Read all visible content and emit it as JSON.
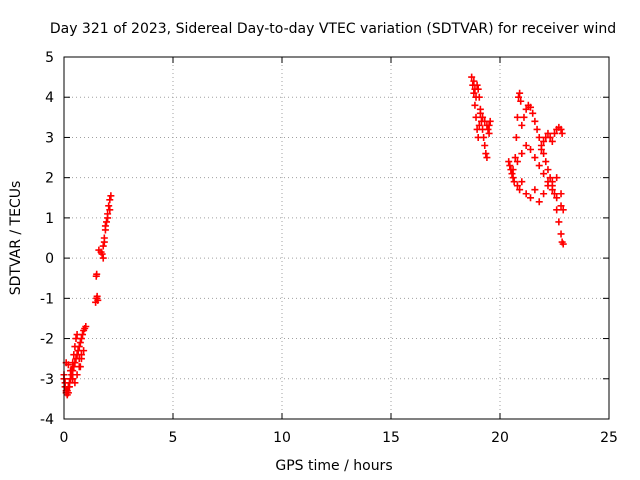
{
  "chart_data": {
    "type": "scatter",
    "title": "Day 321 of 2023, Sidereal Day-to-day VTEC variation (SDTVAR) for receiver wind",
    "xlabel": "GPS time / hours",
    "ylabel": "SDTVAR / TECUs",
    "xlim": [
      0,
      25
    ],
    "ylim": [
      -4,
      5
    ],
    "x_ticks": [
      0,
      5,
      10,
      15,
      20,
      25
    ],
    "y_ticks": [
      -4,
      -3,
      -2,
      -1,
      0,
      1,
      2,
      3,
      4,
      5
    ],
    "x_tick_labels": [
      "0",
      "5",
      "10",
      "15",
      "20",
      "25"
    ],
    "y_tick_labels": [
      "-4",
      "-3",
      "-2",
      "-1",
      "0",
      "1",
      "2",
      "3",
      "4",
      "5"
    ],
    "grid": true,
    "marker": "plus",
    "color": "#ff0000",
    "series": [
      {
        "name": "SDTVAR",
        "x": [
          0.0,
          0.05,
          0.1,
          0.15,
          0.2,
          0.25,
          0.3,
          0.35,
          0.4,
          0.45,
          0.5,
          0.55,
          0.6,
          0.65,
          0.7,
          0.75,
          0.8,
          0.85,
          0.9,
          0.95,
          1.0,
          0.1,
          0.2,
          0.3,
          0.4,
          0.5,
          0.6,
          0.7,
          0.8,
          0.9,
          0.0,
          0.05,
          0.1,
          0.15,
          0.2,
          0.25,
          0.3,
          0.35,
          0.4,
          0.45,
          0.5,
          0.55,
          0.6,
          0.65,
          0.7,
          0.75,
          0.8,
          1.45,
          1.5,
          1.52,
          1.55,
          1.5,
          1.48,
          1.6,
          1.7,
          1.75,
          1.8,
          1.85,
          1.9,
          1.95,
          2.0,
          2.05,
          2.1,
          2.15,
          1.8,
          1.85,
          1.9,
          2.0,
          2.1,
          18.7,
          18.75,
          18.8,
          18.85,
          18.9,
          18.95,
          19.0,
          19.05,
          19.1,
          19.15,
          19.2,
          19.25,
          19.3,
          19.35,
          19.4,
          19.45,
          19.5,
          19.55,
          18.8,
          18.85,
          18.9,
          18.95,
          19.0,
          19.05,
          19.1,
          19.2,
          19.3,
          19.4,
          19.5,
          20.4,
          20.45,
          20.5,
          20.55,
          20.6,
          20.65,
          20.7,
          20.75,
          20.8,
          20.85,
          20.9,
          20.95,
          21.0,
          21.1,
          21.2,
          21.3,
          21.4,
          21.5,
          21.6,
          21.7,
          21.8,
          21.9,
          22.0,
          22.1,
          22.2,
          22.3,
          22.4,
          22.5,
          22.6,
          22.7,
          22.8,
          22.85,
          22.9,
          20.8,
          20.9,
          21.0,
          21.2,
          21.4,
          21.6,
          21.8,
          22.0,
          22.2,
          22.4,
          22.6,
          22.8,
          20.6,
          20.8,
          21.0,
          21.2,
          21.4,
          21.6,
          21.8,
          22.0,
          22.2,
          22.4,
          22.6,
          22.8,
          22.9,
          21.9,
          22.0,
          22.1,
          22.2,
          22.3,
          22.4,
          22.5,
          22.6,
          22.7,
          22.8,
          22.85
        ],
        "y": [
          -3.0,
          -3.2,
          -3.35,
          -3.3,
          -3.2,
          -3.1,
          -3.0,
          -2.9,
          -2.8,
          -2.7,
          -2.6,
          -2.5,
          -2.4,
          -2.3,
          -2.2,
          -2.1,
          -2.0,
          -1.9,
          -1.8,
          -1.75,
          -1.7,
          -2.6,
          -2.65,
          -2.8,
          -3.0,
          -3.1,
          -2.9,
          -2.7,
          -2.5,
          -2.3,
          -2.9,
          -3.1,
          -3.3,
          -3.4,
          -3.35,
          -3.2,
          -3.0,
          -2.8,
          -2.6,
          -2.4,
          -2.2,
          -2.0,
          -1.9,
          -2.3,
          -2.5,
          -2.7,
          -2.4,
          -1.1,
          -1.0,
          -0.95,
          -1.05,
          -0.4,
          -0.45,
          0.2,
          0.15,
          0.1,
          0.3,
          0.5,
          0.7,
          0.9,
          1.1,
          1.3,
          1.45,
          1.55,
          0.0,
          0.4,
          0.8,
          1.0,
          1.2,
          4.5,
          4.3,
          4.1,
          3.8,
          3.5,
          3.2,
          3.0,
          3.3,
          3.6,
          3.4,
          3.2,
          3.0,
          2.8,
          2.6,
          2.5,
          3.2,
          3.3,
          3.4,
          4.4,
          4.2,
          4.0,
          4.3,
          4.2,
          4.0,
          3.7,
          3.5,
          3.4,
          3.3,
          3.1,
          2.4,
          2.3,
          2.2,
          2.1,
          2.0,
          1.9,
          2.5,
          3.0,
          3.5,
          4.0,
          4.1,
          3.9,
          3.3,
          3.5,
          3.7,
          3.8,
          3.75,
          3.6,
          3.4,
          3.2,
          3.0,
          2.8,
          2.6,
          2.4,
          2.2,
          2.0,
          1.8,
          1.6,
          1.2,
          0.9,
          0.6,
          0.4,
          0.35,
          1.8,
          1.7,
          1.9,
          1.6,
          1.5,
          1.7,
          1.4,
          1.6,
          1.8,
          1.9,
          2.0,
          1.6,
          2.2,
          2.4,
          2.6,
          2.8,
          2.7,
          2.5,
          2.3,
          2.1,
          1.9,
          1.7,
          1.5,
          1.3,
          1.2,
          2.7,
          2.9,
          3.0,
          3.1,
          3.0,
          2.9,
          3.1,
          3.2,
          3.25,
          3.2,
          3.1
        ]
      }
    ]
  }
}
